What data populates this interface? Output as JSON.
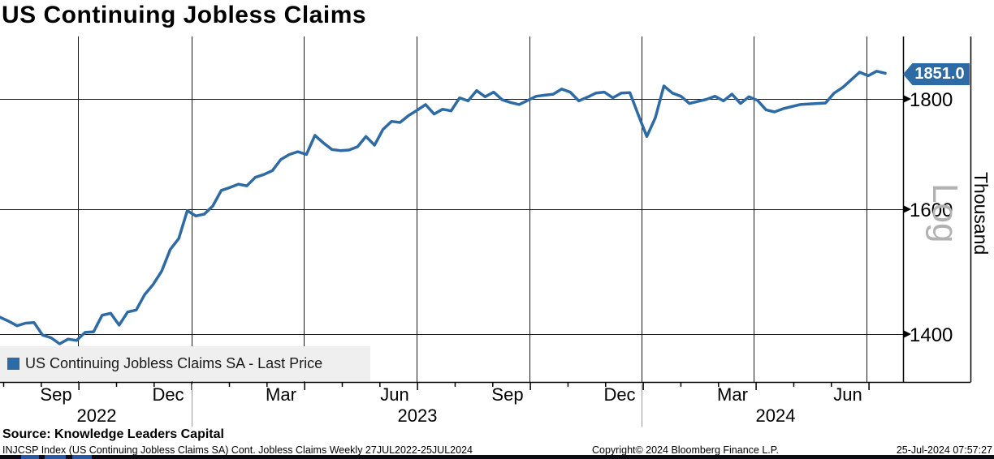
{
  "title": "US Continuing Jobless Claims",
  "colors": {
    "line": "#2e6ba4",
    "badge_bg": "#2e6ba4",
    "legend_bg": "#efefef",
    "gridline": "#1a1a1a",
    "watermark": "#b2b2b2"
  },
  "chart_data": {
    "type": "line",
    "title": "US Continuing Jobless Claims",
    "legend_label": "US Continuing Jobless Claims SA - Last Price",
    "frequency": "Weekly",
    "x_start": "27JUL2022",
    "x_end": "25JUL2024",
    "y_scale": "log",
    "scale_label": "Log",
    "y_axis_label": "Thousand",
    "y_tick_labels": [
      "1800",
      "1600",
      "1400"
    ],
    "y_ticks": [
      1800,
      1600,
      1400
    ],
    "x_tick_labels": [
      "Sep",
      "Dec",
      "Mar",
      "Jun",
      "Sep",
      "Dec",
      "Mar",
      "Jun"
    ],
    "year_labels": [
      "2022",
      "2023",
      "2024"
    ],
    "last_price": 1851.0,
    "last_price_label": "1851.0",
    "values": [
      1426,
      1420,
      1413,
      1417,
      1418,
      1399,
      1395,
      1386,
      1393,
      1391,
      1403,
      1404,
      1429,
      1432,
      1414,
      1434,
      1437,
      1461,
      1477,
      1498,
      1533,
      1551,
      1598,
      1589,
      1592,
      1606,
      1633,
      1638,
      1644,
      1641,
      1656,
      1661,
      1668,
      1688,
      1697,
      1702,
      1697,
      1732,
      1718,
      1706,
      1704,
      1705,
      1711,
      1730,
      1714,
      1743,
      1758,
      1756,
      1769,
      1779,
      1790,
      1772,
      1781,
      1778,
      1803,
      1797,
      1817,
      1805,
      1814,
      1799,
      1794,
      1790,
      1798,
      1806,
      1808,
      1810,
      1820,
      1814,
      1797,
      1804,
      1812,
      1814,
      1803,
      1812,
      1813,
      1770,
      1730,
      1765,
      1826,
      1812,
      1806,
      1792,
      1796,
      1800,
      1806,
      1797,
      1810,
      1792,
      1805,
      1798,
      1780,
      1776,
      1782,
      1786,
      1790,
      1791,
      1792,
      1793,
      1812,
      1823,
      1838,
      1853,
      1846,
      1855,
      1851
    ]
  },
  "source_line": "Source: Knowledge Leaders Capital",
  "footer": {
    "left": "INJCSP Index (US Continuing Jobless Claims SA) Cont. Jobless Claims  Weekly 27JUL2022-25JUL2024",
    "center": "Copyright© 2024 Bloomberg Finance L.P.",
    "right": "25-Jul-2024 07:57:27"
  }
}
